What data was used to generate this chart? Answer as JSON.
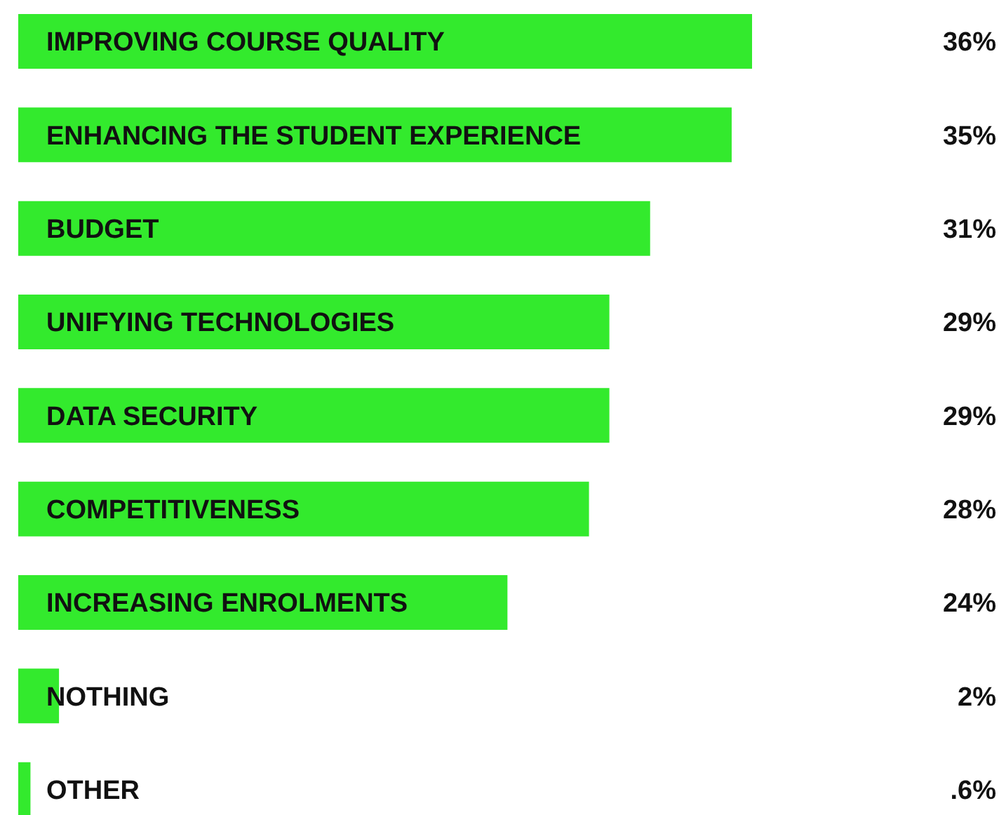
{
  "chart_data": {
    "type": "bar",
    "orientation": "horizontal",
    "categories": [
      "IMPROVING COURSE QUALITY",
      "ENHANCING THE STUDENT EXPERIENCE",
      "BUDGET",
      "UNIFYING TECHNOLOGIES",
      "DATA SECURITY",
      "COMPETITIVENESS",
      "INCREASING ENROLMENTS",
      "NOTHING",
      "OTHER"
    ],
    "values": [
      36,
      35,
      31,
      29,
      29,
      28,
      24,
      2,
      0.6
    ],
    "value_labels": [
      "36%",
      "35%",
      "31%",
      "29%",
      "29%",
      "28%",
      "24%",
      "2%",
      ".6%"
    ],
    "color": "#33ea2d"
  }
}
